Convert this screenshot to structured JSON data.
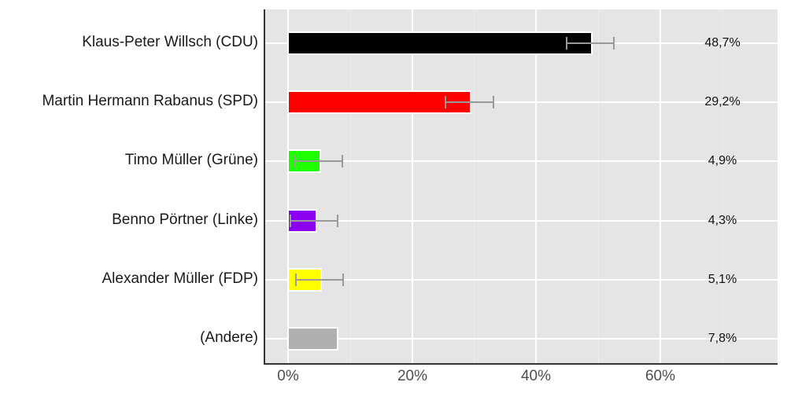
{
  "chart_data": {
    "type": "bar",
    "orientation": "horizontal",
    "title": "",
    "xlabel": "",
    "ylabel": "",
    "xlim": [
      -4.0,
      78.5
    ],
    "x_ticks": [
      "0%",
      "20%",
      "40%",
      "60%"
    ],
    "grid": true,
    "legend": null,
    "categories": [
      "Klaus-Peter Willsch (CDU)",
      "Martin Hermann Rabanus (SPD)",
      "Timo Müller (Grüne)",
      "Benno Pörtner (Linke)",
      "Alexander Müller (FDP)",
      "(Andere)"
    ],
    "values": [
      48.7,
      29.2,
      4.9,
      4.3,
      5.1,
      7.8
    ],
    "value_labels": [
      "48,7%",
      "29,2%",
      "4,9%",
      "4,3%",
      "5,1%",
      "7,8%"
    ],
    "colors": [
      "#000000",
      "#ff0000",
      "#1eff00",
      "#8b00ee",
      "#ffff00",
      "#b0b0b0"
    ],
    "error_bars": [
      {
        "low": 44.9,
        "high": 52.5
      },
      {
        "low": 25.4,
        "high": 33.1
      },
      {
        "low": 1.0,
        "high": 8.8
      },
      {
        "low": 0.4,
        "high": 8.0
      },
      {
        "low": 1.3,
        "high": 8.9
      },
      null
    ]
  }
}
